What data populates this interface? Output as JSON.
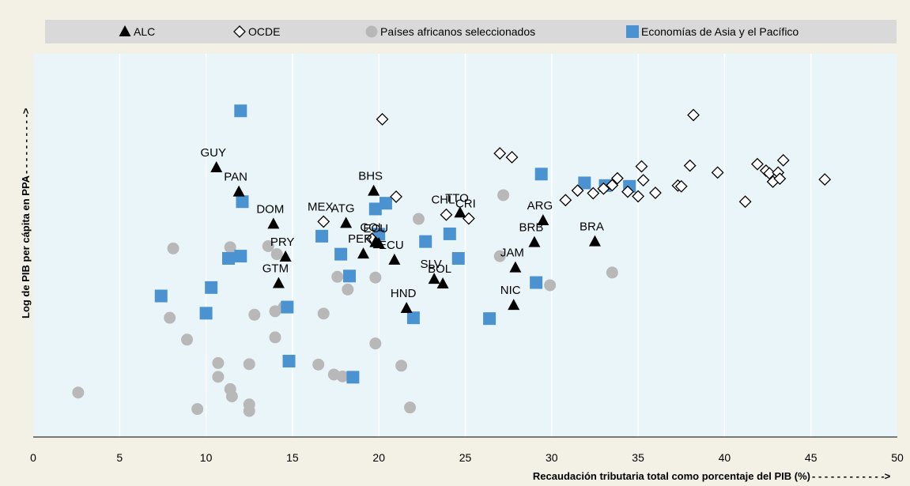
{
  "chart_data": {
    "type": "scatter",
    "xlabel": "Recaudación tributaria total como porcentaje del PIB (%)",
    "ylabel": "Log de PIB per cápita en PPA",
    "xlim": [
      0,
      50
    ],
    "ylim": [
      0,
      1
    ],
    "xticks": [
      0,
      5,
      10,
      15,
      20,
      25,
      30,
      35,
      40,
      45,
      50
    ],
    "grid": "vertical",
    "legend_position": "top",
    "series": [
      {
        "name": "ALC",
        "marker": "triangle",
        "color": "#000000",
        "points": [
          {
            "x": 10.6,
            "y": 0.703,
            "label": "GUY"
          },
          {
            "x": 11.9,
            "y": 0.64,
            "label": "PAN"
          },
          {
            "x": 13.9,
            "y": 0.556,
            "label": "DOM"
          },
          {
            "x": 14.6,
            "y": 0.47,
            "label": "PRY"
          },
          {
            "x": 14.2,
            "y": 0.401,
            "label": "GTM"
          },
          {
            "x": 18.1,
            "y": 0.558,
            "label": "ATG"
          },
          {
            "x": 19.7,
            "y": 0.642,
            "label": "BHS"
          },
          {
            "x": 19.1,
            "y": 0.478,
            "label": "PER"
          },
          {
            "x": 19.8,
            "y": 0.508,
            "label": "COL"
          },
          {
            "x": 20.0,
            "y": 0.505,
            "label": "ECU"
          },
          {
            "x": 20.9,
            "y": 0.462,
            "label": "ECU"
          },
          {
            "x": 21.6,
            "y": 0.336,
            "label": "HND"
          },
          {
            "x": 23.2,
            "y": 0.412,
            "label": "SLV"
          },
          {
            "x": 23.7,
            "y": 0.4,
            "label": "BOL"
          },
          {
            "x": 24.7,
            "y": 0.585,
            "label": "TTO"
          },
          {
            "x": 27.9,
            "y": 0.442,
            "label": "JAM"
          },
          {
            "x": 27.8,
            "y": 0.344,
            "label": "NIC"
          },
          {
            "x": 29.0,
            "y": 0.508,
            "label": "BRB"
          },
          {
            "x": 29.5,
            "y": 0.565,
            "label": "ARG"
          },
          {
            "x": 32.5,
            "y": 0.51,
            "label": "BRA"
          }
        ]
      },
      {
        "name": "OCDE",
        "marker": "diamond-open",
        "color": "#000000",
        "points": [
          {
            "x": 20.2,
            "y": 0.829,
            "label": ""
          },
          {
            "x": 16.8,
            "y": 0.562,
            "label": "MEX"
          },
          {
            "x": 19.6,
            "y": 0.517,
            "label": ""
          },
          {
            "x": 21.0,
            "y": 0.627,
            "label": ""
          },
          {
            "x": 23.9,
            "y": 0.58,
            "label": "CHL"
          },
          {
            "x": 25.2,
            "y": 0.57,
            "label": "CRI"
          },
          {
            "x": 27.0,
            "y": 0.74,
            "label": ""
          },
          {
            "x": 27.7,
            "y": 0.73,
            "label": ""
          },
          {
            "x": 30.8,
            "y": 0.618,
            "label": ""
          },
          {
            "x": 31.5,
            "y": 0.643,
            "label": ""
          },
          {
            "x": 32.4,
            "y": 0.636,
            "label": ""
          },
          {
            "x": 33.0,
            "y": 0.648,
            "label": ""
          },
          {
            "x": 33.5,
            "y": 0.657,
            "label": ""
          },
          {
            "x": 33.8,
            "y": 0.675,
            "label": ""
          },
          {
            "x": 34.4,
            "y": 0.64,
            "label": ""
          },
          {
            "x": 35.0,
            "y": 0.628,
            "label": ""
          },
          {
            "x": 35.2,
            "y": 0.706,
            "label": ""
          },
          {
            "x": 35.3,
            "y": 0.67,
            "label": ""
          },
          {
            "x": 36.0,
            "y": 0.637,
            "label": ""
          },
          {
            "x": 37.3,
            "y": 0.656,
            "label": ""
          },
          {
            "x": 37.5,
            "y": 0.654,
            "label": ""
          },
          {
            "x": 38.0,
            "y": 0.708,
            "label": ""
          },
          {
            "x": 38.2,
            "y": 0.84,
            "label": ""
          },
          {
            "x": 39.6,
            "y": 0.69,
            "label": ""
          },
          {
            "x": 41.2,
            "y": 0.614,
            "label": ""
          },
          {
            "x": 41.9,
            "y": 0.712,
            "label": ""
          },
          {
            "x": 42.4,
            "y": 0.695,
            "label": ""
          },
          {
            "x": 42.6,
            "y": 0.688,
            "label": ""
          },
          {
            "x": 42.8,
            "y": 0.666,
            "label": ""
          },
          {
            "x": 43.1,
            "y": 0.69,
            "label": ""
          },
          {
            "x": 43.2,
            "y": 0.674,
            "label": ""
          },
          {
            "x": 43.4,
            "y": 0.722,
            "label": ""
          },
          {
            "x": 45.8,
            "y": 0.672,
            "label": ""
          }
        ]
      },
      {
        "name": "Países africanos seleccionados",
        "marker": "circle",
        "color": "#b8b8b8",
        "points": [
          {
            "x": 2.6,
            "y": 0.116
          },
          {
            "x": 7.9,
            "y": 0.311
          },
          {
            "x": 8.1,
            "y": 0.492
          },
          {
            "x": 8.9,
            "y": 0.254
          },
          {
            "x": 9.5,
            "y": 0.073
          },
          {
            "x": 10.7,
            "y": 0.193
          },
          {
            "x": 10.7,
            "y": 0.157
          },
          {
            "x": 11.4,
            "y": 0.495
          },
          {
            "x": 11.4,
            "y": 0.125
          },
          {
            "x": 11.5,
            "y": 0.106
          },
          {
            "x": 12.5,
            "y": 0.19
          },
          {
            "x": 12.5,
            "y": 0.085
          },
          {
            "x": 12.5,
            "y": 0.068
          },
          {
            "x": 12.8,
            "y": 0.319
          },
          {
            "x": 13.6,
            "y": 0.498
          },
          {
            "x": 14.0,
            "y": 0.328
          },
          {
            "x": 14.0,
            "y": 0.26
          },
          {
            "x": 14.1,
            "y": 0.477
          },
          {
            "x": 14.5,
            "y": 0.339
          },
          {
            "x": 16.5,
            "y": 0.189
          },
          {
            "x": 16.8,
            "y": 0.322
          },
          {
            "x": 17.4,
            "y": 0.163
          },
          {
            "x": 17.6,
            "y": 0.418
          },
          {
            "x": 17.9,
            "y": 0.158
          },
          {
            "x": 18.2,
            "y": 0.385
          },
          {
            "x": 19.8,
            "y": 0.244
          },
          {
            "x": 19.8,
            "y": 0.416
          },
          {
            "x": 21.3,
            "y": 0.186
          },
          {
            "x": 21.8,
            "y": 0.077
          },
          {
            "x": 22.3,
            "y": 0.569
          },
          {
            "x": 27.0,
            "y": 0.472
          },
          {
            "x": 27.2,
            "y": 0.631
          },
          {
            "x": 29.9,
            "y": 0.396
          },
          {
            "x": 33.5,
            "y": 0.429
          }
        ]
      },
      {
        "name": "Economías de Asia y el Pacífico",
        "marker": "square",
        "color": "#4b93d0",
        "points": [
          {
            "x": 7.4,
            "y": 0.368
          },
          {
            "x": 10.0,
            "y": 0.323
          },
          {
            "x": 10.3,
            "y": 0.39
          },
          {
            "x": 11.3,
            "y": 0.466
          },
          {
            "x": 12.0,
            "y": 0.472
          },
          {
            "x": 12.0,
            "y": 0.851
          },
          {
            "x": 12.1,
            "y": 0.614
          },
          {
            "x": 14.7,
            "y": 0.339
          },
          {
            "x": 14.8,
            "y": 0.198
          },
          {
            "x": 16.7,
            "y": 0.524
          },
          {
            "x": 17.8,
            "y": 0.477
          },
          {
            "x": 18.3,
            "y": 0.42
          },
          {
            "x": 18.5,
            "y": 0.156
          },
          {
            "x": 19.8,
            "y": 0.595
          },
          {
            "x": 20.0,
            "y": 0.529
          },
          {
            "x": 20.4,
            "y": 0.61
          },
          {
            "x": 22.0,
            "y": 0.311
          },
          {
            "x": 22.7,
            "y": 0.51
          },
          {
            "x": 24.1,
            "y": 0.53
          },
          {
            "x": 24.6,
            "y": 0.466
          },
          {
            "x": 26.4,
            "y": 0.309
          },
          {
            "x": 29.1,
            "y": 0.403
          },
          {
            "x": 29.4,
            "y": 0.686
          },
          {
            "x": 31.9,
            "y": 0.663
          },
          {
            "x": 33.1,
            "y": 0.656
          },
          {
            "x": 34.5,
            "y": 0.654
          }
        ]
      }
    ]
  }
}
